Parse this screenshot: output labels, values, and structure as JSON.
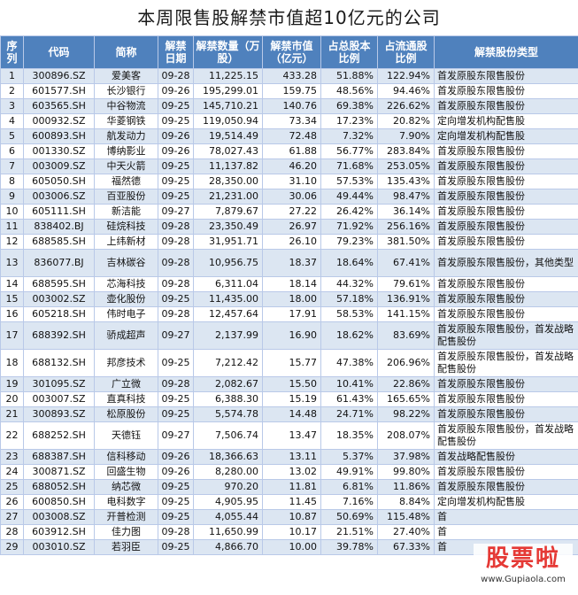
{
  "title": "本周限售股解禁市值超10亿元的公司",
  "headers": [
    "序列",
    "代码",
    "简称",
    "解禁日期",
    "解禁数量（万股）",
    "解禁市值（亿元）",
    "占总股本比例",
    "占流通股比例",
    "解禁股份类型"
  ],
  "rows": [
    {
      "seq": "1",
      "code": "300896.SZ",
      "name": "爱美客",
      "date": "09-28",
      "qty": "11,225.15",
      "value": "433.28",
      "total_pct": "51.88%",
      "float_pct": "122.94%",
      "type": "首发原股东限售股份"
    },
    {
      "seq": "2",
      "code": "601577.SH",
      "name": "长沙银行",
      "date": "09-26",
      "qty": "195,299.01",
      "value": "159.75",
      "total_pct": "48.56%",
      "float_pct": "94.46%",
      "type": "首发原股东限售股份"
    },
    {
      "seq": "3",
      "code": "603565.SH",
      "name": "中谷物流",
      "date": "09-25",
      "qty": "145,710.21",
      "value": "140.76",
      "total_pct": "69.38%",
      "float_pct": "226.62%",
      "type": "首发原股东限售股份"
    },
    {
      "seq": "4",
      "code": "000932.SZ",
      "name": "华菱钢铁",
      "date": "09-25",
      "qty": "119,050.94",
      "value": "73.34",
      "total_pct": "17.23%",
      "float_pct": "20.82%",
      "type": "定向增发机构配售股"
    },
    {
      "seq": "5",
      "code": "600893.SH",
      "name": "航发动力",
      "date": "09-26",
      "qty": "19,514.49",
      "value": "72.48",
      "total_pct": "7.32%",
      "float_pct": "7.90%",
      "type": "定向增发机构配售股"
    },
    {
      "seq": "6",
      "code": "001330.SZ",
      "name": "博纳影业",
      "date": "09-26",
      "qty": "78,027.43",
      "value": "61.88",
      "total_pct": "56.77%",
      "float_pct": "283.84%",
      "type": "首发原股东限售股份"
    },
    {
      "seq": "7",
      "code": "003009.SZ",
      "name": "中天火箭",
      "date": "09-25",
      "qty": "11,137.82",
      "value": "46.20",
      "total_pct": "71.68%",
      "float_pct": "253.05%",
      "type": "首发原股东限售股份"
    },
    {
      "seq": "8",
      "code": "605050.SH",
      "name": "福然德",
      "date": "09-25",
      "qty": "28,350.00",
      "value": "31.10",
      "total_pct": "57.53%",
      "float_pct": "135.43%",
      "type": "首发原股东限售股份"
    },
    {
      "seq": "9",
      "code": "003006.SZ",
      "name": "百亚股份",
      "date": "09-25",
      "qty": "21,231.00",
      "value": "30.06",
      "total_pct": "49.44%",
      "float_pct": "98.47%",
      "type": "首发原股东限售股份"
    },
    {
      "seq": "10",
      "code": "605111.SH",
      "name": "新洁能",
      "date": "09-27",
      "qty": "7,879.67",
      "value": "27.22",
      "total_pct": "26.42%",
      "float_pct": "36.14%",
      "type": "首发原股东限售股份"
    },
    {
      "seq": "11",
      "code": "838402.BJ",
      "name": "硅烷科技",
      "date": "09-28",
      "qty": "23,350.49",
      "value": "26.97",
      "total_pct": "71.92%",
      "float_pct": "256.16%",
      "type": "首发原股东限售股份"
    },
    {
      "seq": "12",
      "code": "688585.SH",
      "name": "上纬新材",
      "date": "09-28",
      "qty": "31,951.71",
      "value": "26.10",
      "total_pct": "79.23%",
      "float_pct": "381.50%",
      "type": "首发原股东限售股份"
    },
    {
      "seq": "13",
      "code": "836077.BJ",
      "name": "吉林碳谷",
      "date": "09-28",
      "qty": "10,956.75",
      "value": "18.37",
      "total_pct": "18.64%",
      "float_pct": "67.41%",
      "type": "首发原股东限售股份，其他类型"
    },
    {
      "seq": "14",
      "code": "688595.SH",
      "name": "芯海科技",
      "date": "09-28",
      "qty": "6,311.04",
      "value": "18.14",
      "total_pct": "44.32%",
      "float_pct": "79.61%",
      "type": "首发原股东限售股份"
    },
    {
      "seq": "15",
      "code": "003002.SZ",
      "name": "壶化股份",
      "date": "09-25",
      "qty": "11,435.00",
      "value": "18.00",
      "total_pct": "57.18%",
      "float_pct": "136.91%",
      "type": "首发原股东限售股份"
    },
    {
      "seq": "16",
      "code": "605218.SH",
      "name": "伟时电子",
      "date": "09-28",
      "qty": "12,457.64",
      "value": "17.91",
      "total_pct": "58.53%",
      "float_pct": "141.15%",
      "type": "首发原股东限售股份"
    },
    {
      "seq": "17",
      "code": "688392.SH",
      "name": "骄成超声",
      "date": "09-27",
      "qty": "2,137.99",
      "value": "16.90",
      "total_pct": "18.62%",
      "float_pct": "83.69%",
      "type": "首发原股东限售股份，首发战略配售股份"
    },
    {
      "seq": "18",
      "code": "688132.SH",
      "name": "邦彦技术",
      "date": "09-25",
      "qty": "7,212.42",
      "value": "15.77",
      "total_pct": "47.38%",
      "float_pct": "206.96%",
      "type": "首发原股东限售股份，首发战略配售股份"
    },
    {
      "seq": "19",
      "code": "301095.SZ",
      "name": "广立微",
      "date": "09-28",
      "qty": "2,082.67",
      "value": "15.50",
      "total_pct": "10.41%",
      "float_pct": "22.86%",
      "type": "首发原股东限售股份"
    },
    {
      "seq": "20",
      "code": "003007.SZ",
      "name": "直真科技",
      "date": "09-25",
      "qty": "6,388.30",
      "value": "15.19",
      "total_pct": "61.43%",
      "float_pct": "165.65%",
      "type": "首发原股东限售股份"
    },
    {
      "seq": "21",
      "code": "300893.SZ",
      "name": "松原股份",
      "date": "09-25",
      "qty": "5,574.78",
      "value": "14.48",
      "total_pct": "24.71%",
      "float_pct": "98.22%",
      "type": "首发原股东限售股份"
    },
    {
      "seq": "22",
      "code": "688252.SH",
      "name": "天德钰",
      "date": "09-27",
      "qty": "7,506.74",
      "value": "13.47",
      "total_pct": "18.35%",
      "float_pct": "208.07%",
      "type": "首发原股东限售股份，首发战略配售股份"
    },
    {
      "seq": "23",
      "code": "688387.SH",
      "name": "信科移动",
      "date": "09-26",
      "qty": "18,366.63",
      "value": "13.11",
      "total_pct": "5.37%",
      "float_pct": "37.98%",
      "type": "首发战略配售股份"
    },
    {
      "seq": "24",
      "code": "300871.SZ",
      "name": "回盛生物",
      "date": "09-26",
      "qty": "8,280.00",
      "value": "13.02",
      "total_pct": "49.91%",
      "float_pct": "99.80%",
      "type": "首发原股东限售股份"
    },
    {
      "seq": "25",
      "code": "688052.SH",
      "name": "纳芯微",
      "date": "09-25",
      "qty": "970.20",
      "value": "11.81",
      "total_pct": "6.81%",
      "float_pct": "11.86%",
      "type": "首发原股东限售股份"
    },
    {
      "seq": "26",
      "code": "600850.SH",
      "name": "电科数字",
      "date": "09-25",
      "qty": "4,905.95",
      "value": "11.45",
      "total_pct": "7.16%",
      "float_pct": "8.84%",
      "type": "定向增发机构配售股"
    },
    {
      "seq": "27",
      "code": "003008.SZ",
      "name": "开普检测",
      "date": "09-25",
      "qty": "4,055.44",
      "value": "10.87",
      "total_pct": "50.69%",
      "float_pct": "115.48%",
      "type": "首"
    },
    {
      "seq": "28",
      "code": "603912.SH",
      "name": "佳力图",
      "date": "09-28",
      "qty": "11,650.99",
      "value": "10.17",
      "total_pct": "21.51%",
      "float_pct": "27.40%",
      "type": "首"
    },
    {
      "seq": "29",
      "code": "003010.SZ",
      "name": "若羽臣",
      "date": "09-25",
      "qty": "4,866.70",
      "value": "10.00",
      "total_pct": "39.78%",
      "float_pct": "67.33%",
      "type": "首"
    }
  ],
  "watermark": {
    "text": "股票啦",
    "url": "www.Gupiaola.com"
  },
  "colors": {
    "header_bg": "#4f81bd",
    "alt_row_bg": "#dce6f2",
    "border": "#b9c9e8",
    "watermark_red": "#e53935"
  }
}
